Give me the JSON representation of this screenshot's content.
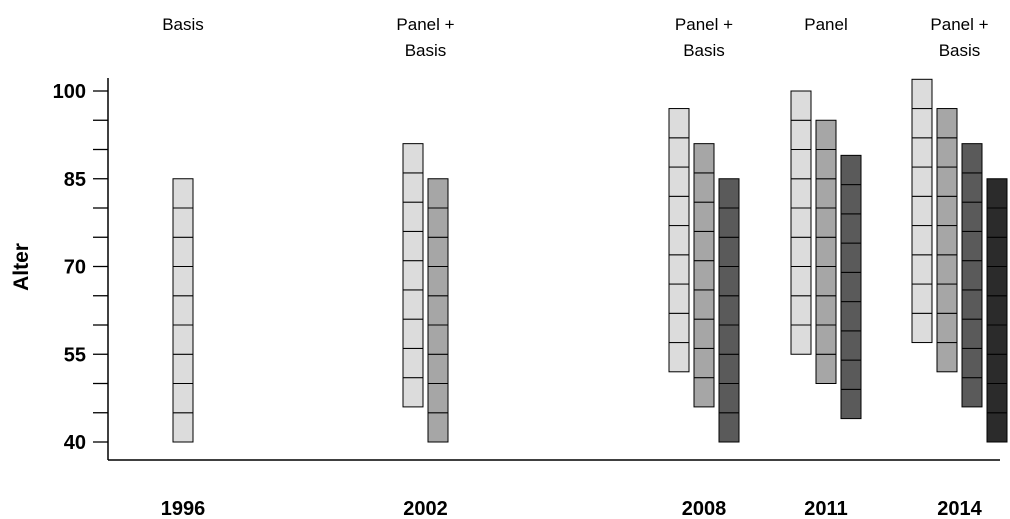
{
  "chart_data": {
    "type": "bar",
    "title": "",
    "xlabel": "",
    "ylabel": "Alter",
    "ylim": [
      40,
      100
    ],
    "yticks": [
      40,
      55,
      70,
      85,
      100
    ],
    "grid": false,
    "colors": [
      "#dcdcdc",
      "#a6a6a6",
      "#5a5a5a",
      "#2b2b2b"
    ],
    "groups": [
      {
        "year": "1996",
        "label_lines": [
          "Basis"
        ],
        "bars": [
          {
            "low": 40,
            "high": 85
          }
        ]
      },
      {
        "year": "2002",
        "label_lines": [
          "Panel +",
          "Basis"
        ],
        "bars": [
          {
            "low": 46,
            "high": 91
          },
          {
            "low": 40,
            "high": 85
          }
        ]
      },
      {
        "year": "2008",
        "label_lines": [
          "Panel +",
          "Basis"
        ],
        "bars": [
          {
            "low": 52,
            "high": 97
          },
          {
            "low": 46,
            "high": 91
          },
          {
            "low": 40,
            "high": 85
          }
        ]
      },
      {
        "year": "2011",
        "label_lines": [
          "Panel"
        ],
        "bars": [
          {
            "low": 55,
            "high": 100
          },
          {
            "low": 50,
            "high": 95
          },
          {
            "low": 44,
            "high": 89
          }
        ]
      },
      {
        "year": "2014",
        "label_lines": [
          "Panel +",
          "Basis"
        ],
        "bars": [
          {
            "low": 57,
            "high": 102
          },
          {
            "low": 52,
            "high": 97
          },
          {
            "low": 46,
            "high": 91
          },
          {
            "low": 40,
            "high": 85
          }
        ]
      }
    ]
  }
}
